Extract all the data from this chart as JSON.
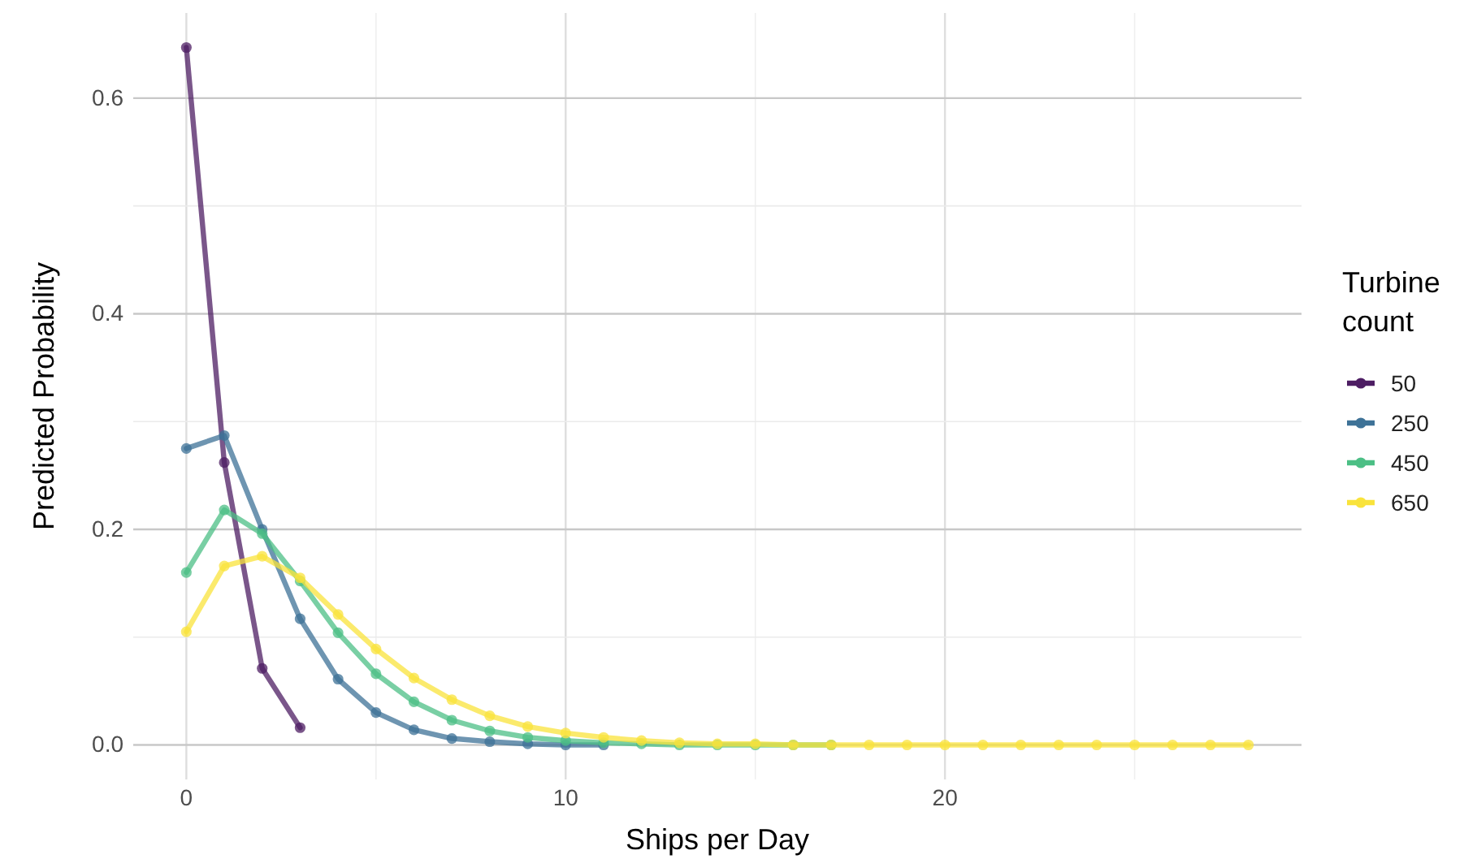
{
  "chart_data": {
    "type": "line",
    "xlabel": "Ships per Day",
    "ylabel": "Predicted Probability",
    "legend_title": "Turbine\ncount",
    "legend": "right",
    "grid": true,
    "marker": "circle",
    "line_style": "solid",
    "xlim": [
      -1.4,
      29.4
    ],
    "xticks": [
      0,
      10,
      20
    ],
    "ylim": [
      -0.032,
      0.679
    ],
    "yticks": [
      {
        "value": 0,
        "label": "0.0"
      },
      0.2,
      0.4,
      0.6
    ],
    "series": [
      {
        "name": "50",
        "color": "#4d1d63",
        "x": [
          0,
          1,
          2,
          3
        ],
        "values": [
          0.647,
          0.262,
          0.071,
          0.016
        ]
      },
      {
        "name": "250",
        "color": "#3e7297",
        "x": [
          0,
          1,
          2,
          3,
          4,
          5,
          6,
          7,
          8,
          9,
          10,
          11
        ],
        "values": [
          0.275,
          0.287,
          0.2,
          0.117,
          0.061,
          0.03,
          0.014,
          0.006,
          0.003,
          0.001,
          0,
          0
        ]
      },
      {
        "name": "450",
        "color": "#4cbf85",
        "x": [
          0,
          1,
          2,
          3,
          4,
          5,
          6,
          7,
          8,
          9,
          10,
          11,
          12,
          13,
          14,
          15,
          16,
          17
        ],
        "values": [
          0.16,
          0.218,
          0.196,
          0.152,
          0.104,
          0.066,
          0.04,
          0.023,
          0.013,
          0.007,
          0.004,
          0.002,
          0.001,
          0,
          0,
          0,
          0,
          0
        ]
      },
      {
        "name": "650",
        "color": "#f9e33b",
        "x": [
          0,
          1,
          2,
          3,
          4,
          5,
          6,
          7,
          8,
          9,
          10,
          11,
          12,
          13,
          14,
          15,
          16,
          17,
          18,
          19,
          20,
          21,
          22,
          23,
          24,
          25,
          26,
          27,
          28
        ],
        "values": [
          0.105,
          0.166,
          0.175,
          0.155,
          0.121,
          0.089,
          0.062,
          0.042,
          0.027,
          0.017,
          0.011,
          0.007,
          0.004,
          0.002,
          0.001,
          0.001,
          0,
          0,
          0,
          0,
          0,
          0,
          0,
          0,
          0,
          0,
          0,
          0,
          0
        ]
      }
    ]
  }
}
